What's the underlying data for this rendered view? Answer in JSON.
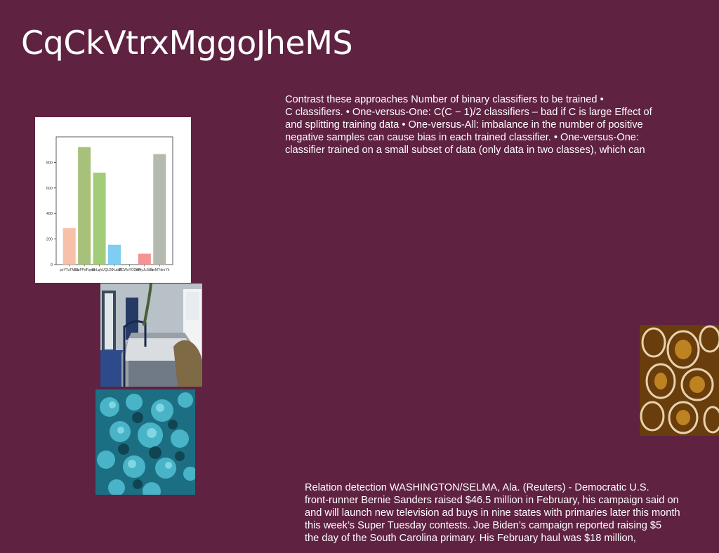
{
  "slide": {
    "title": "CqCkVtrxMggoJheMS",
    "paragraph_top_lines": [
      "Contrast these approaches Number of binary classifiers to be trained •",
      "C classifiers. • One-versus-One: C(C − 1)/2 classifiers – bad if C is large Effect of",
      "and splitting training data • One-versus-All: imbalance in the number of positive",
      "negative samples can cause bias in each trained classifier. • One-versus-One:",
      "classifier trained on a small subset of data (only data in two classes), which can"
    ],
    "paragraph_bottom_lines": [
      "Relation detection WASHINGTON/SELMA, Ala. (Reuters) - Democratic U.S.",
      "front-runner Bernie Sanders raised $46.5 million in February, his campaign said on",
      "and will launch new television ad buys in nine states with primaries later this month",
      "this week’s Super Tuesday contests. Joe Biden’s campaign reported raising $5",
      "the day of the South Carolina primary. His February haul was $18 million,"
    ],
    "images": [
      {
        "name": "bedroom-photo"
      },
      {
        "name": "foliage-photo"
      },
      {
        "name": "texture-photo"
      }
    ]
  },
  "chart_data": {
    "type": "bar",
    "categories": [
      "psYTuTMTb",
      "bozFPdFqwb",
      "UhLqhUQ",
      "IJXKuiaB",
      "MCWsYOSoH",
      "WhyJcSHs",
      "JkeMYdmYh"
    ],
    "values": [
      285,
      920,
      720,
      155,
      0,
      85,
      865
    ],
    "colors": [
      "#f7c0a9",
      "#a7c17a",
      "#a3cc7a",
      "#7ecdf2",
      "#b8b8e0",
      "#f59393",
      "#b4bab0"
    ],
    "yticks": [
      0,
      200,
      400,
      600,
      800
    ],
    "ylim": [
      0,
      1000
    ],
    "title": "",
    "xlabel": "",
    "ylabel": ""
  }
}
